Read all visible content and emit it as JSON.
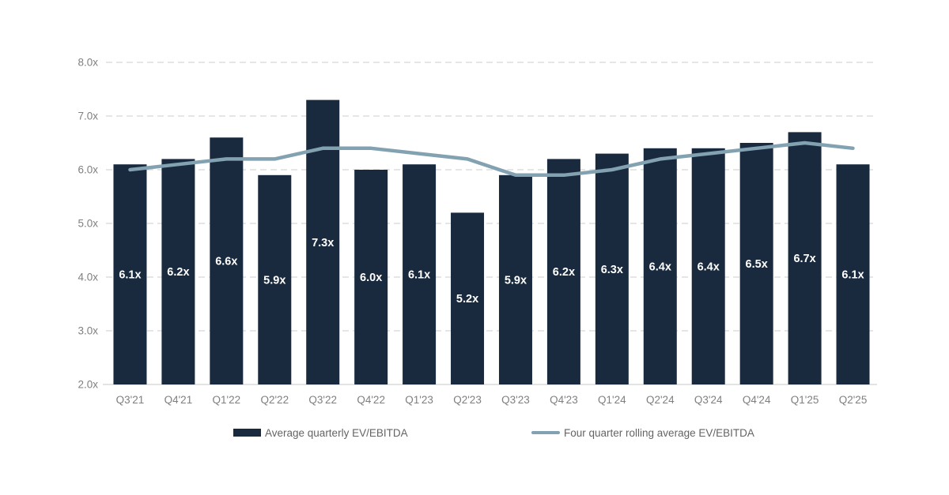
{
  "chart_data": {
    "type": "bar",
    "subtype": "bar-line-combo",
    "title": "",
    "xlabel": "",
    "ylabel": "",
    "categories": [
      "Q3'21",
      "Q4'21",
      "Q1'22",
      "Q2'22",
      "Q3'22",
      "Q4'22",
      "Q1'23",
      "Q2'23",
      "Q3'23",
      "Q4'23",
      "Q1'24",
      "Q2'24",
      "Q3'24",
      "Q4'24",
      "Q1'25",
      "Q2'25"
    ],
    "series": [
      {
        "name": "Average quarterly EV/EBITDA",
        "type": "bar",
        "values": [
          6.1,
          6.2,
          6.6,
          5.9,
          7.3,
          6.0,
          6.1,
          5.2,
          5.9,
          6.2,
          6.3,
          6.4,
          6.4,
          6.5,
          6.7,
          6.1
        ],
        "value_labels": [
          "6.1x",
          "6.2x",
          "6.6x",
          "5.9x",
          "7.3x",
          "6.0x",
          "6.1x",
          "5.2x",
          "5.9x",
          "6.2x",
          "6.3x",
          "6.4x",
          "6.4x",
          "6.5x",
          "6.7x",
          "6.1x"
        ]
      },
      {
        "name": "Four quarter rolling average EV/EBITDA",
        "type": "line",
        "values": [
          6.0,
          6.1,
          6.2,
          6.2,
          6.4,
          6.4,
          6.3,
          6.2,
          5.9,
          5.9,
          6.0,
          6.2,
          6.3,
          6.4,
          6.5,
          6.4
        ]
      }
    ],
    "ylim": [
      2.0,
      8.0
    ],
    "bar_base": 2.0,
    "y_ticks": [
      {
        "value": 8.0,
        "label": "8.0x"
      },
      {
        "value": 7.0,
        "label": "7.0x"
      },
      {
        "value": 6.0,
        "label": "6.0x"
      },
      {
        "value": 5.0,
        "label": "5.0x"
      },
      {
        "value": 4.0,
        "label": "4.0x"
      },
      {
        "value": 3.0,
        "label": "3.0x"
      },
      {
        "value": 2.0,
        "label": "2.0x"
      }
    ],
    "grid": "horizontal-dashed",
    "legend_position": "bottom"
  },
  "colors": {
    "background": "#FFFFFF",
    "bar": "#192A3E",
    "line": "#82A1B1",
    "grid": "#D8D8D8",
    "axis_line": "#D2D2D2",
    "tick_text": "#7F7F7F",
    "legend_text": "#646464",
    "bar_label": "#FFFFFF"
  }
}
